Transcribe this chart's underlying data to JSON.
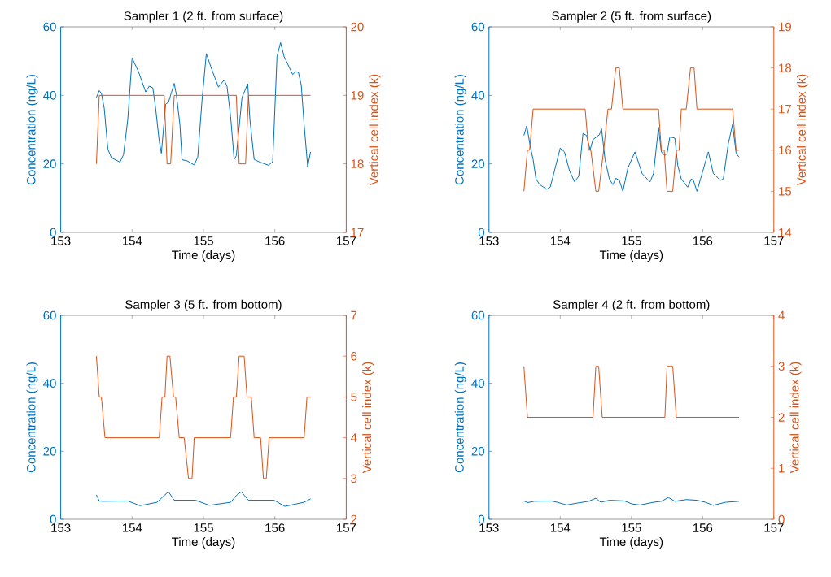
{
  "chart_data": [
    {
      "type": "line",
      "title": "Sampler 1 (2 ft. from surface)",
      "xlabel": "Time (days)",
      "ylabel": "Concentration (ng/L)",
      "y2label": "Vertical cell index (k)",
      "xlim": [
        153,
        157
      ],
      "xticks": [
        153,
        154,
        155,
        156,
        157
      ],
      "ylim": [
        0,
        60
      ],
      "yticks": [
        0,
        20,
        40,
        60
      ],
      "y2lim": [
        17,
        20
      ],
      "y2ticks": [
        17,
        18,
        19,
        20
      ],
      "series": [
        {
          "color": "#0072bd",
          "x": [
            153.5,
            153.54,
            153.57,
            153.61,
            153.66,
            153.71,
            153.83,
            153.88,
            153.94,
            154.0,
            154.09,
            154.19,
            154.24,
            154.29,
            154.33,
            154.38,
            154.41,
            154.47,
            154.51,
            154.59,
            154.62,
            154.67,
            154.7,
            154.77,
            154.87,
            154.92,
            154.98,
            155.04,
            155.1,
            155.21,
            155.29,
            155.33,
            155.38,
            155.43,
            155.46,
            155.54,
            155.62,
            155.65,
            155.71,
            155.78,
            155.91,
            155.97,
            156.03,
            156.08,
            156.13,
            156.25,
            156.29,
            156.33,
            156.37,
            156.41,
            156.46,
            156.5
          ],
          "values": [
            39.4,
            41.4,
            40.6,
            36.2,
            24.3,
            21.8,
            20.5,
            22.7,
            33.1,
            50.9,
            46.9,
            41.0,
            42.7,
            42.2,
            36.2,
            26.7,
            23.1,
            37.4,
            38.0,
            43.5,
            40.2,
            31.5,
            21.2,
            20.9,
            19.7,
            22.0,
            38.6,
            52.2,
            48.5,
            42.4,
            44.5,
            42.6,
            33.8,
            21.3,
            22.4,
            39.4,
            43.4,
            33.1,
            21.3,
            20.6,
            19.6,
            20.6,
            51.3,
            55.4,
            51.3,
            46.1,
            46.9,
            46.7,
            43.0,
            31.5,
            19.2,
            23.5
          ]
        },
        {
          "color": "#d95319",
          "axis": "y2",
          "x": [
            153.5,
            153.54,
            154.45,
            154.49,
            154.54,
            154.59,
            155.46,
            155.5,
            155.59,
            155.63,
            156.5
          ],
          "values": [
            18,
            19,
            19,
            18,
            18,
            19,
            19,
            18,
            18,
            19,
            19
          ]
        }
      ]
    },
    {
      "type": "line",
      "title": "Sampler 2 (5 ft. from surface)",
      "xlabel": "Time (days)",
      "ylabel": "Concentration (ng/L)",
      "y2label": "Vertical cell index (k)",
      "xlim": [
        153,
        157
      ],
      "xticks": [
        153,
        154,
        155,
        156,
        157
      ],
      "ylim": [
        0,
        60
      ],
      "yticks": [
        0,
        20,
        40,
        60
      ],
      "y2lim": [
        14,
        19
      ],
      "y2ticks": [
        14,
        15,
        16,
        17,
        18,
        19
      ],
      "series": [
        {
          "color": "#0072bd",
          "x": [
            153.49,
            153.53,
            153.58,
            153.62,
            153.66,
            153.71,
            153.81,
            153.86,
            153.91,
            154.0,
            154.06,
            154.13,
            154.2,
            154.26,
            154.32,
            154.37,
            154.42,
            154.46,
            154.55,
            154.58,
            154.63,
            154.69,
            154.74,
            154.78,
            154.83,
            154.88,
            154.95,
            155.05,
            155.15,
            155.26,
            155.31,
            155.38,
            155.42,
            155.47,
            155.5,
            155.54,
            155.61,
            155.65,
            155.7,
            155.79,
            155.84,
            155.87,
            155.92,
            155.97,
            156.08,
            156.15,
            156.25,
            156.29,
            156.36,
            156.42,
            156.47,
            156.51
          ],
          "values": [
            28.3,
            31.1,
            25.1,
            21.2,
            15.6,
            14.0,
            12.6,
            13.2,
            17.2,
            24.6,
            23.5,
            18.0,
            14.8,
            16.4,
            28.9,
            28.3,
            24.1,
            27.1,
            28.5,
            30.3,
            21.2,
            15.6,
            13.9,
            15.8,
            15.2,
            12.0,
            18.8,
            23.5,
            17.2,
            14.7,
            17.2,
            30.7,
            23.5,
            22.4,
            23.1,
            27.9,
            27.5,
            19.6,
            15.6,
            13.2,
            15.6,
            15.2,
            12.0,
            15.6,
            23.5,
            17.2,
            15.2,
            15.6,
            25.9,
            31.5,
            23.1,
            22.0
          ]
        },
        {
          "color": "#d95319",
          "axis": "y2",
          "x": [
            153.49,
            153.54,
            153.57,
            153.62,
            154.35,
            154.4,
            154.43,
            154.5,
            154.54,
            154.61,
            154.67,
            154.72,
            154.78,
            154.83,
            154.88,
            155.38,
            155.42,
            155.46,
            155.5,
            155.58,
            155.63,
            155.67,
            155.7,
            155.77,
            155.83,
            155.88,
            155.92,
            156.42,
            156.47,
            156.51
          ],
          "values": [
            15,
            16,
            16,
            17,
            17,
            16,
            16,
            15,
            15,
            16,
            17,
            17,
            18,
            18,
            17,
            17,
            16,
            16,
            15,
            15,
            16,
            16,
            17,
            17,
            18,
            18,
            17,
            17,
            16,
            16
          ]
        }
      ]
    },
    {
      "type": "line",
      "title": "Sampler 3 (5 ft. from bottom)",
      "xlabel": "Time (days)",
      "ylabel": "Concentration (ng/L)",
      "y2label": "Vertical cell index (k)",
      "xlim": [
        153,
        157
      ],
      "xticks": [
        153,
        154,
        155,
        156,
        157
      ],
      "ylim": [
        0,
        60
      ],
      "yticks": [
        0,
        20,
        40,
        60
      ],
      "y2lim": [
        2,
        7
      ],
      "y2ticks": [
        2,
        3,
        4,
        5,
        6,
        7
      ],
      "series": [
        {
          "color": "#0072bd",
          "x": [
            153.5,
            153.54,
            153.59,
            153.94,
            154.11,
            154.35,
            154.45,
            154.51,
            154.59,
            154.89,
            155.08,
            155.38,
            155.46,
            155.53,
            155.63,
            155.99,
            156.14,
            156.41,
            156.5
          ],
          "values": [
            7.2,
            5.4,
            5.3,
            5.4,
            4.0,
            5.0,
            7.0,
            8.1,
            5.6,
            5.6,
            4.1,
            5.0,
            7.0,
            8.1,
            5.6,
            5.6,
            3.8,
            5.0,
            6.0
          ]
        },
        {
          "color": "#d95319",
          "axis": "y2",
          "x": [
            153.5,
            153.54,
            153.57,
            153.62,
            154.38,
            154.42,
            154.46,
            154.49,
            154.53,
            154.58,
            154.61,
            154.66,
            154.73,
            154.79,
            154.84,
            154.87,
            155.38,
            155.42,
            155.46,
            155.5,
            155.57,
            155.61,
            155.67,
            155.71,
            155.8,
            155.84,
            155.88,
            155.92,
            156.41,
            156.45,
            156.5
          ],
          "values": [
            6,
            5,
            5,
            4,
            4,
            5,
            5,
            6,
            6,
            5,
            5,
            4,
            4,
            3,
            3,
            4,
            4,
            5,
            5,
            6,
            6,
            5,
            5,
            4,
            4,
            3,
            3,
            4,
            4,
            5,
            5
          ]
        }
      ]
    },
    {
      "type": "line",
      "title": "Sampler 4 (2 ft. from bottom)",
      "xlabel": "Time (days)",
      "ylabel": "Concentration (ng/L)",
      "y2label": "Vertical cell index (k)",
      "xlim": [
        153,
        157
      ],
      "xticks": [
        153,
        154,
        155,
        156,
        157
      ],
      "ylim": [
        0,
        60
      ],
      "yticks": [
        0,
        20,
        40,
        60
      ],
      "y2lim": [
        0,
        4
      ],
      "y2ticks": [
        0,
        1,
        2,
        3,
        4
      ],
      "series": [
        {
          "color": "#0072bd",
          "x": [
            153.49,
            153.54,
            153.64,
            153.87,
            153.96,
            154.09,
            154.25,
            154.4,
            154.5,
            154.57,
            154.69,
            154.9,
            155.01,
            155.12,
            155.31,
            155.42,
            155.52,
            155.61,
            155.77,
            155.92,
            156.04,
            156.15,
            156.32,
            156.51
          ],
          "values": [
            5.4,
            4.9,
            5.3,
            5.4,
            5.0,
            4.2,
            4.8,
            5.3,
            6.2,
            5.0,
            5.6,
            5.4,
            4.5,
            4.2,
            5.0,
            5.3,
            6.4,
            5.3,
            5.8,
            5.6,
            5.0,
            4.1,
            5.0,
            5.3
          ]
        },
        {
          "color": "#d95319",
          "axis": "y2",
          "x": [
            153.49,
            153.54,
            154.46,
            154.5,
            154.54,
            154.59,
            155.47,
            155.5,
            155.58,
            155.63,
            156.51
          ],
          "values": [
            3,
            2,
            2,
            3,
            3,
            2,
            2,
            3,
            3,
            2,
            2
          ]
        }
      ]
    }
  ]
}
